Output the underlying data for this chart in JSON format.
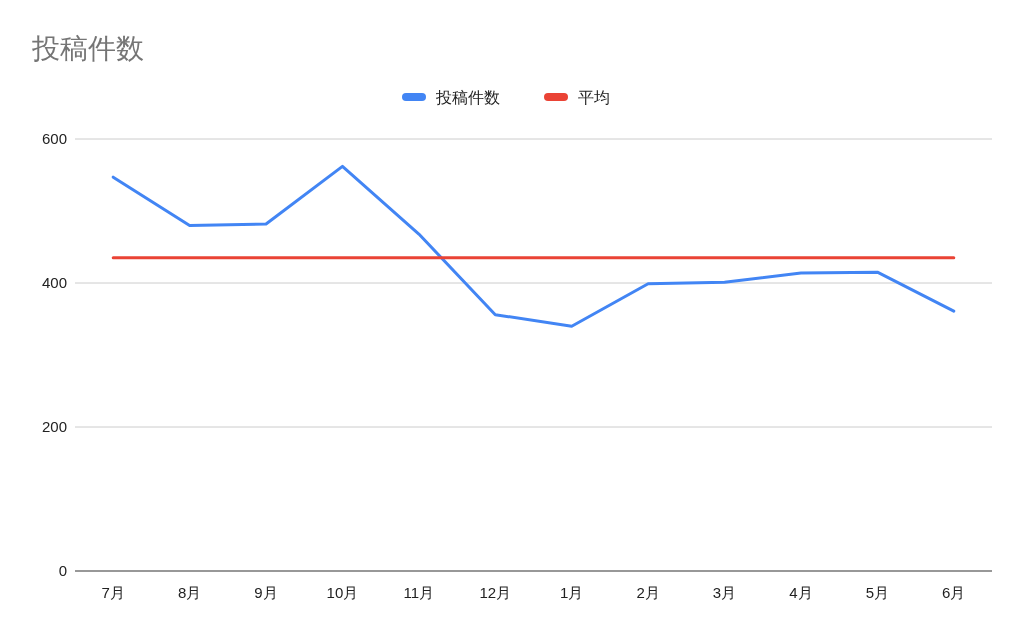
{
  "chart_data": {
    "type": "line",
    "title": "投稿件数",
    "categories": [
      "7月",
      "8月",
      "9月",
      "10月",
      "11月",
      "12月",
      "1月",
      "2月",
      "3月",
      "4月",
      "5月",
      "6月"
    ],
    "series": [
      {
        "name": "投稿件数",
        "color": "#4285f4",
        "values": [
          547,
          480,
          482,
          562,
          468,
          356,
          340,
          399,
          401,
          414,
          415,
          361
        ]
      },
      {
        "name": "平均",
        "color": "#ea4335",
        "values": [
          435,
          435,
          435,
          435,
          435,
          435,
          435,
          435,
          435,
          435,
          435,
          435
        ]
      }
    ],
    "ylim": [
      0,
      600
    ],
    "yticks": [
      0,
      200,
      400,
      600
    ],
    "grid": "y",
    "legend": "top",
    "marker": "none",
    "line_style": "solid"
  }
}
